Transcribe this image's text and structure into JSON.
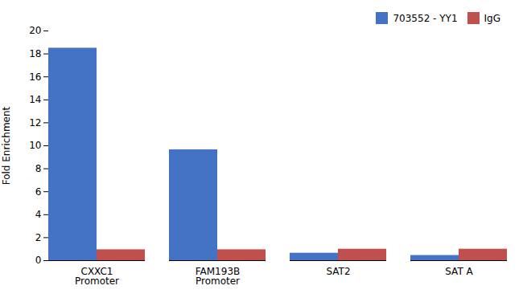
{
  "chart_data": {
    "type": "bar",
    "categories": [
      "CXXC1\nPromoter",
      "FAM193B\nPromoter",
      "SAT2",
      "SAT A"
    ],
    "series": [
      {
        "name": "703552 - YY1",
        "color": "#4472C4",
        "values": [
          18.5,
          9.65,
          0.65,
          0.45
        ]
      },
      {
        "name": "IgG",
        "color": "#C0504D",
        "values": [
          0.95,
          0.95,
          1.0,
          1.0
        ]
      }
    ],
    "y_label": "Fold Enrichment",
    "ylim": [
      0,
      20
    ],
    "yticks": [
      0,
      2,
      4,
      6,
      8,
      10,
      12,
      14,
      16,
      18,
      20
    ],
    "grid": false,
    "legend": "upper right"
  }
}
